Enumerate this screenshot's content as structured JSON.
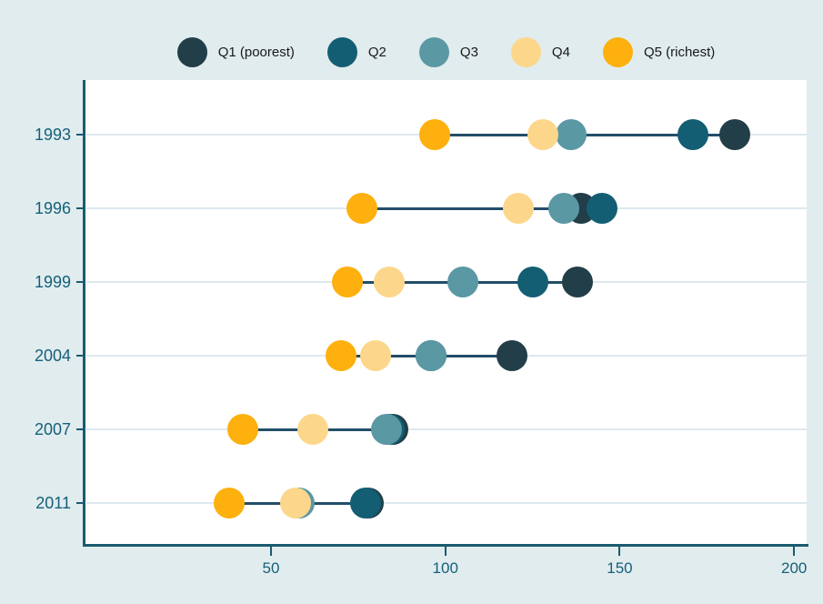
{
  "chart_data": {
    "type": "scatter",
    "subtype": "dot-plot-with-range-lines",
    "title": "",
    "xlabel": "",
    "ylabel": "",
    "categories": [
      "1993",
      "1996",
      "1999",
      "2004",
      "2007",
      "2011"
    ],
    "series": [
      {
        "name": "Q1 (poorest)",
        "color": "#223e48",
        "values": [
          183,
          139,
          138,
          119,
          85,
          78
        ]
      },
      {
        "name": "Q2",
        "color": "#135e73",
        "values": [
          171,
          145,
          125,
          96,
          84,
          77
        ]
      },
      {
        "name": "Q3",
        "color": "#5a98a4",
        "values": [
          136,
          134,
          105,
          96,
          83,
          58
        ]
      },
      {
        "name": "Q4",
        "color": "#fcd78b",
        "values": [
          128,
          121,
          84,
          80,
          62,
          57
        ]
      },
      {
        "name": "Q5 (richest)",
        "color": "#fdb00e",
        "values": [
          97,
          76,
          72,
          70,
          42,
          38
        ]
      }
    ],
    "xticks": [
      {
        "value": 50,
        "label": "50"
      },
      {
        "value": 100,
        "label": "100"
      },
      {
        "value": 150,
        "label": "150"
      },
      {
        "value": 200,
        "label": "200"
      }
    ],
    "xlim": [
      -3.2,
      203.6
    ],
    "grid": "horizontal",
    "legend_position": "top-center",
    "colors": {
      "background": "#e1ecee",
      "plot_background": "#ffffff",
      "axis": "#1a5b70",
      "tick_label": "#15607a",
      "legend_text": "#191919",
      "range_line": "#234e68",
      "gridline": "#dde9ee"
    }
  }
}
